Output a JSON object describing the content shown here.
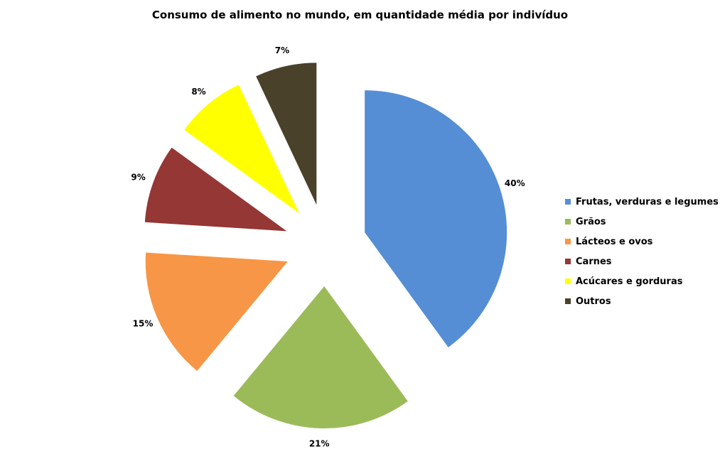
{
  "chart_data": {
    "type": "pie",
    "title": "Consumo de alimento no mundo, em quantidade média por  indivíduo",
    "categories": [
      "Frutas, verduras e legumes",
      "Grãos",
      "Lácteos e ovos",
      "Carnes",
      "Acúcares e gorduras",
      "Outros"
    ],
    "values": [
      40,
      21,
      15,
      9,
      8,
      7
    ],
    "value_labels": [
      "40%",
      "21%",
      "15%",
      "9%",
      "8%",
      "7%"
    ],
    "colors": [
      "#558ED5",
      "#9BBB59",
      "#F79646",
      "#953735",
      "#FFFF00",
      "#4A412A"
    ],
    "exploded": true,
    "legend_position": "right"
  }
}
